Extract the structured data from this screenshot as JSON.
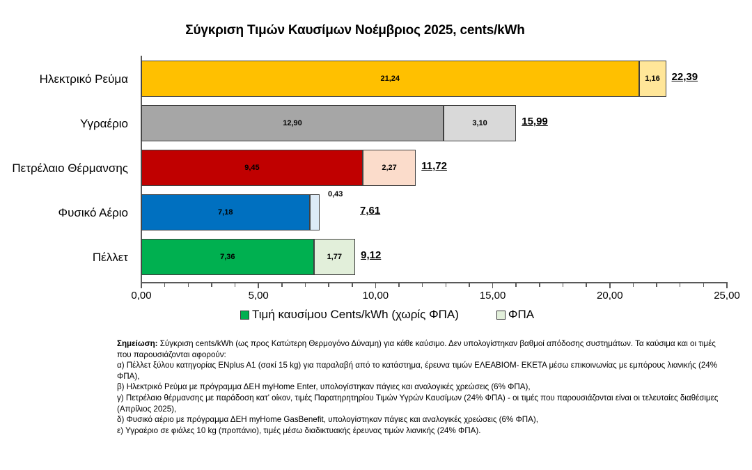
{
  "title": "Σύγκριση Τιμών Καυσίμων Νοέμβριος 2025, cents/kWh",
  "legend": [
    {
      "label": "Τιμή καυσίμου Cents/kWh (χωρίς ΦΠΑ)",
      "color": "#00B050"
    },
    {
      "label": "ΦΠΑ",
      "color": "#E2EFDA"
    }
  ],
  "x_ticks": [
    "0,00",
    "5,00",
    "10,00",
    "15,00",
    "20,00",
    "25,00"
  ],
  "bars": [
    {
      "label": "Ηλεκτρικό Ρεύμα",
      "base": 21.24,
      "vat": 1.16,
      "total": 22.39,
      "base_text": "21,24",
      "vat_text": "1,16",
      "total_text": "22,39",
      "base_color": "#FFC000",
      "vat_color": "#FFE699"
    },
    {
      "label": "Υγραέριο",
      "base": 12.9,
      "vat": 3.1,
      "total": 15.99,
      "base_text": "12,90",
      "vat_text": "3,10",
      "total_text": "15,99",
      "base_color": "#A6A6A6",
      "vat_color": "#D9D9D9"
    },
    {
      "label": "Πετρέλαιο Θέρμανσης",
      "base": 9.45,
      "vat": 2.27,
      "total": 11.72,
      "base_text": "9,45",
      "vat_text": "2,27",
      "total_text": "11,72",
      "base_color": "#C00000",
      "vat_color": "#FBDCCB"
    },
    {
      "label": "Φυσικό Αέριο",
      "base": 7.18,
      "vat": 0.43,
      "total": 7.61,
      "base_text": "7,18",
      "vat_text": "0,43",
      "total_text": "7,61",
      "base_color": "#0070C0",
      "vat_color": "#DDEBF7"
    },
    {
      "label": "Πέλλετ",
      "base": 7.36,
      "vat": 1.77,
      "total": 9.12,
      "base_text": "7,36",
      "vat_text": "1,77",
      "total_text": "9,12",
      "base_color": "#00B050",
      "vat_color": "#E2EFDA"
    }
  ],
  "note": {
    "heading": "Σημείωση:",
    "intro": " Σύγκριση cents/kWh (ως προς Κατώτερη Θερμογόνο Δύναμη) για κάθε καύσιμο. Δεν υπολογίστηκαν βαθμοί απόδοσης συστημάτων. Τα καύσιμα και οι τιμές που παρουσιάζονται αφορούν:",
    "items": [
      "α) Πέλλετ ξύλου κατηγορίας ENplus A1 (σακί 15 kg) για παραλαβή από το κατάστημα, έρευνα τιμών ΕΛΕΑΒΙΟΜ- ΕΚΕΤΑ μέσω  επικοινωνίας με εμπόρους λιανικής (24% ΦΠΑ),",
      "β) Ηλεκτρικό Ρεύμα με πρόγραμμα ΔΕΗ myHome Enter, υπολογίστηκαν πάγιες και αναλογικές χρεώσεις (6% ΦΠΑ),",
      "γ) Πετρέλαιο θέρμανσης με παράδοση κατ' οίκον, τιμές Παρατηρητηρίου Τιμών Υγρών Καυσίμων (24% ΦΠΑ) - οι τιμές που παρουσιάζονται είναι οι τελευταίες διαθέσιμες (Απρίλιος 2025),",
      "δ) Φυσικό αέριο με πρόγραμμα ΔΕΗ myHome GasBenefit, υπολογίστηκαν πάγιες και αναλογικές χρεώσεις (6% ΦΠΑ),",
      "ε) Υγραέριο σε φιάλες 10 kg (προπάνιο), τιμές μέσω διαδικτυακής έρευνας τιμών λιανικής (24% ΦΠΑ)."
    ]
  },
  "chart_data": {
    "type": "bar",
    "orientation": "horizontal",
    "stacked": true,
    "title": "Σύγκριση Τιμών Καυσίμων Νοέμβριος 2025, cents/kWh",
    "categories": [
      "Ηλεκτρικό Ρεύμα",
      "Υγραέριο",
      "Πετρέλαιο Θέρμανσης",
      "Φυσικό Αέριο",
      "Πέλλετ"
    ],
    "series": [
      {
        "name": "Τιμή καυσίμου Cents/kWh (χωρίς ΦΠΑ)",
        "values": [
          21.24,
          12.9,
          9.45,
          7.18,
          7.36
        ]
      },
      {
        "name": "ΦΠΑ",
        "values": [
          1.16,
          3.1,
          2.27,
          0.43,
          1.77
        ]
      }
    ],
    "totals": [
      22.39,
      15.99,
      11.72,
      7.61,
      9.12
    ],
    "xlabel": "",
    "ylabel": "",
    "xlim": [
      0,
      25
    ],
    "x_ticks": [
      0,
      5,
      10,
      15,
      20,
      25
    ],
    "grid": false,
    "legend_position": "bottom"
  }
}
